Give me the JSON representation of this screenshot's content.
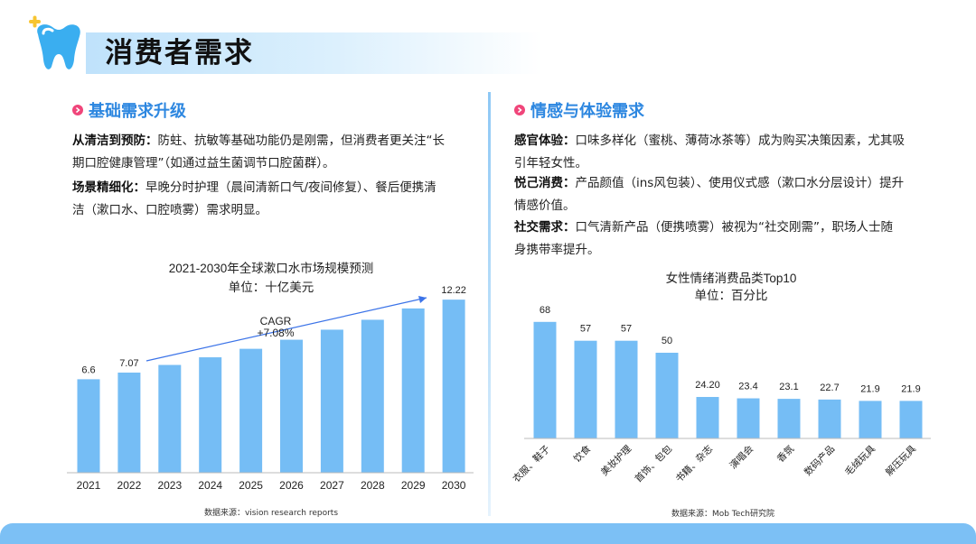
{
  "header": {
    "title": "消费者需求"
  },
  "left": {
    "heading": "基础需求升级",
    "p1_bold": "从清洁到预防：",
    "p1_line1": "防蛀、抗敏等基础功能仍是刚需，但消费者更关注“长",
    "p1_line2": "期口腔健康管理”（如通过益生菌调节口腔菌群）。",
    "p2_bold": "场景精细化：",
    "p2_line1": "早晚分时护理（晨间清新口气/夜间修复）、餐后便携清",
    "p2_line2": "洁（漱口水、口腔喷雾）需求明显。"
  },
  "right": {
    "heading": "情感与体验需求",
    "p1_bold": "感官体验：",
    "p1_line1": "口味多样化（蜜桃、薄荷冰茶等）成为购买决策因素，尤其吸",
    "p1_line2": "引年轻女性。",
    "p2_bold": "悦己消费：",
    "p2_line1": "产品颜值（ins风包装）、使用仪式感（漱口水分层设计）提升",
    "p2_line2": "情感价值。",
    "p3_bold": "社交需求：",
    "p3_line1": "口气清新产品（便携喷雾）被视为“社交刚需”，职场人士随",
    "p3_line2": "身携带率提升。"
  },
  "colors": {
    "accent": "#2d87e0",
    "bar": "#75bdf5",
    "bullet": "#f0457a",
    "trend": "#3b73e8"
  },
  "chart_data": [
    {
      "type": "bar",
      "title": "2021-2030年全球漱口水市场规模预测",
      "subtitle": "单位：十亿美元",
      "categories": [
        "2021",
        "2022",
        "2023",
        "2024",
        "2025",
        "2026",
        "2027",
        "2028",
        "2029",
        "2030"
      ],
      "values": [
        6.6,
        7.07,
        7.61,
        8.15,
        8.75,
        9.39,
        10.1,
        10.8,
        11.6,
        12.22
      ],
      "labels": [
        "6.6",
        "7.07",
        "",
        "",
        "",
        "",
        "",
        "",
        "",
        "12.22"
      ],
      "ylim": [
        0,
        14
      ],
      "annotation": {
        "line1": "CAGR",
        "line2": "+7.08%"
      },
      "source": "数据来源：vision research reports",
      "grid": false
    },
    {
      "type": "bar",
      "title": "女性情绪消费品类Top10",
      "subtitle": "单位：百分比",
      "categories": [
        "衣服、鞋子",
        "饮食",
        "美妆护理",
        "首饰、包包",
        "书籍、杂志",
        "演唱会",
        "香氛",
        "数码产品",
        "毛绒玩具",
        "解压玩具"
      ],
      "values": [
        68,
        57,
        57,
        50,
        24.2,
        23.4,
        23.1,
        22.7,
        21.9,
        21.9
      ],
      "labels": [
        "68",
        "57",
        "57",
        "50",
        "24.20",
        "23.4",
        "23.1",
        "22.7",
        "21.9",
        "21.9"
      ],
      "ylim": [
        0,
        80
      ],
      "source": "数据来源：Mob Tech研究院",
      "grid": false
    }
  ]
}
